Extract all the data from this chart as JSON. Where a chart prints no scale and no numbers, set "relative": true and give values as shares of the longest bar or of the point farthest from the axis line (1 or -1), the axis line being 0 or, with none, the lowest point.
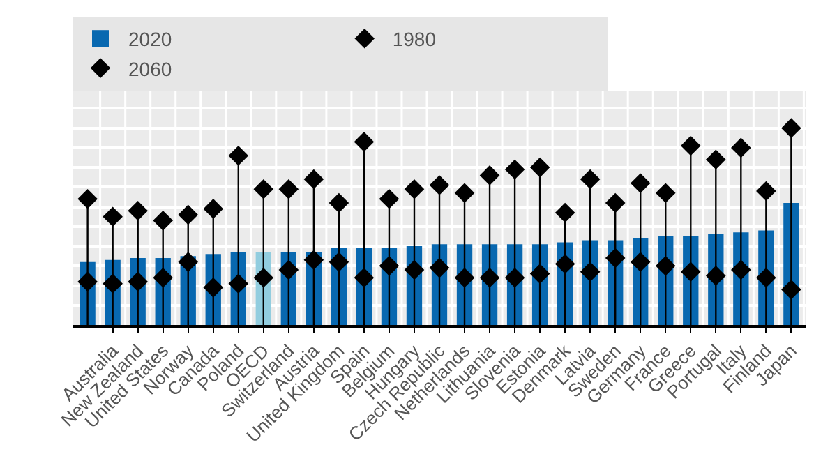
{
  "chart_data": {
    "type": "bar",
    "relative": true,
    "grid": true,
    "legend": "top",
    "categories": [
      null,
      "Australia",
      "New Zealand",
      "United States",
      "Norway",
      "Canada",
      "Poland",
      "OECD",
      "Switzerland",
      "Austria",
      "United Kingdom",
      "Spain",
      "Belgium",
      "Hungary",
      "Czech Republic",
      "Netherlands",
      "Lithuania",
      "Slovenia",
      "Estonia",
      "Denmark",
      "Latvia",
      "Sweden",
      "Germany",
      "France",
      "Greece",
      "Portugal",
      "Italy",
      "Finland",
      "Japan"
    ],
    "series": [
      {
        "name": "2020",
        "color": "#0868b0",
        "colors": [
          "#0868b0",
          "#0868b0",
          "#0868b0",
          "#0868b0",
          "#0868b0",
          "#0868b0",
          "#0868b0",
          "#92cddf",
          "#0868b0",
          "#0868b0",
          "#0868b0",
          "#0868b0",
          "#0868b0",
          "#0868b0",
          "#0868b0",
          "#0868b0",
          "#0868b0",
          "#0868b0",
          "#0868b0",
          "#0868b0",
          "#0868b0",
          "#0868b0",
          "#0868b0",
          "#0868b0",
          "#0868b0",
          "#0868b0",
          "#0868b0",
          "#0868b0",
          "#0868b0"
        ],
        "values": [
          0.32,
          0.33,
          0.34,
          0.34,
          0.35,
          0.36,
          0.37,
          0.37,
          0.37,
          0.37,
          0.39,
          0.39,
          0.39,
          0.4,
          0.41,
          0.41,
          0.41,
          0.41,
          0.41,
          0.42,
          0.43,
          0.43,
          0.44,
          0.45,
          0.45,
          0.46,
          0.47,
          0.48,
          0.62
        ]
      },
      {
        "name": "1980",
        "type": "scatter",
        "marker": "diamond",
        "color": "#000000",
        "values": [
          0.22,
          0.21,
          0.22,
          0.24,
          0.32,
          0.19,
          0.21,
          0.24,
          0.28,
          0.33,
          0.32,
          0.24,
          0.3,
          0.28,
          0.29,
          0.24,
          0.24,
          0.24,
          0.26,
          0.31,
          0.27,
          0.34,
          0.32,
          0.3,
          0.27,
          0.25,
          0.28,
          0.24,
          0.18
        ]
      },
      {
        "name": "2060",
        "type": "lollipop",
        "marker": "diamond",
        "color": "#000000",
        "values": [
          0.64,
          0.55,
          0.58,
          0.53,
          0.56,
          0.59,
          0.86,
          0.69,
          0.69,
          0.74,
          0.62,
          0.93,
          0.64,
          0.69,
          0.71,
          0.67,
          0.76,
          0.79,
          0.8,
          0.57,
          0.74,
          0.62,
          0.72,
          0.67,
          0.91,
          0.84,
          0.9,
          0.68,
          1.0
        ]
      }
    ]
  }
}
